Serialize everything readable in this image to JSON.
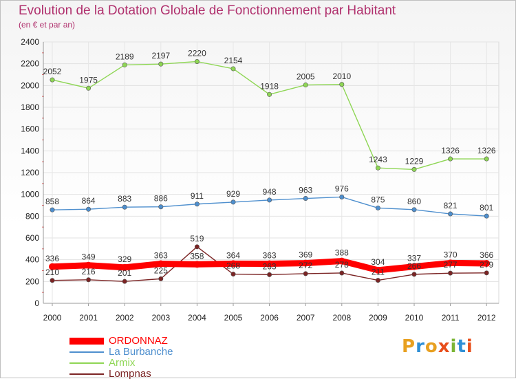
{
  "title": "Evolution de la Dotation Globale de Fonctionnement par Habitant",
  "subtitle": "(en € et par an)",
  "logo": {
    "text": "Proxiti",
    "colors": [
      "#e8a020",
      "#2e8fd6",
      "#e8a020",
      "#e84e1b",
      "#7bb536",
      "#2e8fd6",
      "#e84e1b"
    ]
  },
  "chart_data": {
    "type": "line",
    "x": [
      "2000",
      "2001",
      "2002",
      "2003",
      "2004",
      "2005",
      "2006",
      "2007",
      "2008",
      "2009",
      "2010",
      "2011",
      "2012"
    ],
    "ylim": [
      0,
      2400
    ],
    "yticks": [
      0,
      200,
      400,
      600,
      800,
      1000,
      1200,
      1400,
      1600,
      1800,
      2000,
      2200,
      2400
    ],
    "grid": true,
    "legend_position": "bottom-left",
    "series": [
      {
        "name": "ORDONNAZ",
        "color": "#ff0000",
        "values": [
          336,
          349,
          329,
          363,
          358,
          364,
          363,
          369,
          388,
          304,
          337,
          370,
          366
        ],
        "labels": [
          "336",
          "349",
          "329",
          "363",
          "358",
          "364",
          "363",
          "369",
          "388",
          "304",
          "337",
          "370",
          "366"
        ]
      },
      {
        "name": "La Burbanche",
        "color": "#4e8fce",
        "values": [
          858,
          864,
          883,
          886,
          911,
          929,
          948,
          963,
          976,
          875,
          860,
          821,
          801
        ],
        "labels": [
          "858",
          "864",
          "883",
          "886",
          "911",
          "929",
          "948",
          "963",
          "976",
          "875",
          "860",
          "821",
          "801"
        ]
      },
      {
        "name": "Armix",
        "color": "#8ed654",
        "values": [
          2052,
          1975,
          2189,
          2197,
          2220,
          2154,
          1918,
          2005,
          2010,
          1243,
          1229,
          1326,
          1326
        ],
        "labels": [
          "2052",
          "1975",
          "2189",
          "2197",
          "2220",
          "2154",
          "1918",
          "2005",
          "2010",
          "1243",
          "1229",
          "1326",
          "1326"
        ]
      },
      {
        "name": "Lompnas",
        "color": "#7b2424",
        "values": [
          210,
          216,
          201,
          225,
          519,
          268,
          263,
          272,
          278,
          211,
          266,
          277,
          279
        ],
        "labels": [
          "210",
          "216",
          "201",
          "225",
          "519",
          "268",
          "263",
          "272",
          "278",
          "211",
          "266",
          "277",
          "279"
        ]
      }
    ]
  }
}
